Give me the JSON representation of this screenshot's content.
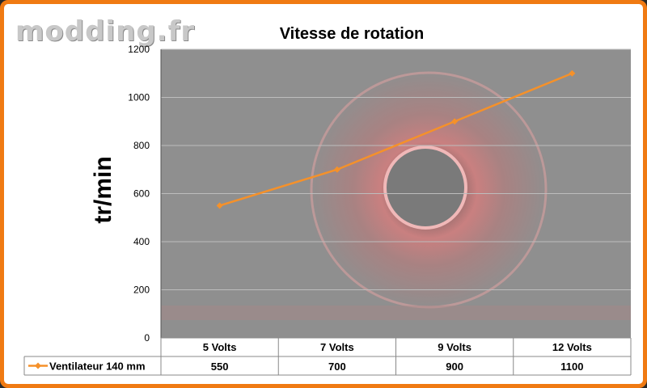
{
  "watermark": "modding.fr",
  "chart_data": {
    "type": "line",
    "title": "Vitesse de rotation",
    "ylabel": "tr/min",
    "xlabel": "",
    "categories": [
      "5 Volts",
      "7 Volts",
      "9 Volts",
      "12 Volts"
    ],
    "series": [
      {
        "name": "Ventilateur 140 mm",
        "values": [
          550,
          700,
          900,
          1100
        ],
        "color": "#f5912a"
      }
    ],
    "ylim": [
      0,
      1200
    ],
    "yticks": [
      0,
      200,
      400,
      600,
      800,
      1000,
      1200
    ],
    "grid": true,
    "data_table": true,
    "table_values": [
      "550",
      "700",
      "900",
      "1100"
    ],
    "plot_background": "#8f8f8f",
    "frame_color": "#f07a12"
  }
}
